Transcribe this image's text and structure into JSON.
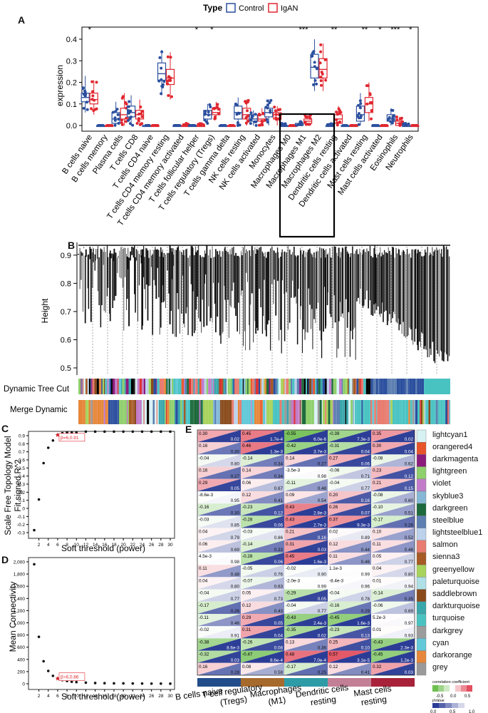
{
  "panels": {
    "a": "A",
    "b": "B",
    "c": "C",
    "d": "D",
    "e": "E"
  },
  "panelA": {
    "legend_title": "Type",
    "legend_control": "Control",
    "legend_igan": "IgAN",
    "ylabel": "expression",
    "y_ticks": [
      "0.0",
      "0.1",
      "0.2",
      "0.3",
      "0.4"
    ],
    "colors": {
      "control": "#2b4f9e",
      "igan": "#e0262f"
    },
    "cell_types": [
      {
        "name": "B cells naive",
        "sig": "*",
        "c": [
          0.06,
          0.11,
          0.13,
          0.15,
          0.23
        ],
        "i": [
          0.05,
          0.1,
          0.12,
          0.15,
          0.21
        ]
      },
      {
        "name": "B cells memory",
        "sig": "",
        "c": [
          0,
          0,
          0,
          0,
          0
        ],
        "i": [
          0,
          0,
          0,
          0,
          0
        ]
      },
      {
        "name": "Plasma cells",
        "sig": "",
        "c": [
          0,
          0.01,
          0.03,
          0.06,
          0.11
        ],
        "i": [
          0,
          0.03,
          0.05,
          0.08,
          0.15
        ]
      },
      {
        "name": "T cells CD8",
        "sig": "",
        "c": [
          0,
          0.04,
          0.06,
          0.09,
          0.14
        ],
        "i": [
          0,
          0.03,
          0.05,
          0.07,
          0.12
        ]
      },
      {
        "name": "T cells CD4 naive",
        "sig": "",
        "c": [
          0,
          0,
          0,
          0,
          0
        ],
        "i": [
          0,
          0,
          0,
          0,
          0
        ]
      },
      {
        "name": "T cells CD4 memory resting",
        "sig": "",
        "c": [
          0.14,
          0.21,
          0.24,
          0.29,
          0.35
        ],
        "i": [
          0.12,
          0.19,
          0.22,
          0.26,
          0.34
        ]
      },
      {
        "name": "T cells CD4 memory activated",
        "sig": "",
        "c": [
          0,
          0,
          0,
          0,
          0
        ],
        "i": [
          0,
          0,
          0,
          0,
          0.01
        ]
      },
      {
        "name": "T cells follicular helper",
        "sig": "*",
        "c": [
          0,
          0,
          0,
          0,
          0
        ],
        "i": [
          0,
          0,
          0,
          0,
          0.01
        ]
      },
      {
        "name": "T cells regulatory (Tregs)",
        "sig": "*",
        "c": [
          0.01,
          0.03,
          0.05,
          0.07,
          0.1
        ],
        "i": [
          0.03,
          0.05,
          0.06,
          0.08,
          0.11
        ]
      },
      {
        "name": "T cells gamma delta",
        "sig": "",
        "c": [
          0,
          0,
          0,
          0,
          0
        ],
        "i": [
          0,
          0,
          0,
          0,
          0
        ]
      },
      {
        "name": "NK cells resting",
        "sig": "",
        "c": [
          0,
          0.03,
          0.06,
          0.09,
          0.13
        ],
        "i": [
          0,
          0.03,
          0.05,
          0.08,
          0.12
        ]
      },
      {
        "name": "NK cells activated",
        "sig": "",
        "c": [
          0,
          0.02,
          0.03,
          0.05,
          0.07
        ],
        "i": [
          0,
          0.02,
          0.03,
          0.05,
          0.08
        ]
      },
      {
        "name": "Monocytes",
        "sig": "",
        "c": [
          0,
          0.04,
          0.06,
          0.08,
          0.12
        ],
        "i": [
          0,
          0.03,
          0.05,
          0.06,
          0.09
        ]
      },
      {
        "name": "Macrophages M0",
        "sig": "",
        "c": [
          0,
          0,
          0,
          0,
          0.01
        ],
        "i": [
          0,
          0,
          0,
          0,
          0
        ]
      },
      {
        "name": "Macrophages M1",
        "sig": "***",
        "c": [
          0,
          0,
          0,
          0.01,
          0.02
        ],
        "i": [
          0,
          0.01,
          0.02,
          0.03,
          0.05
        ]
      },
      {
        "name": "Macrophages M2",
        "sig": "",
        "c": [
          0.16,
          0.22,
          0.27,
          0.33,
          0.4
        ],
        "i": [
          0.16,
          0.22,
          0.26,
          0.31,
          0.38
        ]
      },
      {
        "name": "Dendritic cells resting",
        "sig": "**",
        "c": [
          0,
          0,
          0,
          0,
          0.01
        ],
        "i": [
          0,
          0.01,
          0.03,
          0.05,
          0.09
        ]
      },
      {
        "name": "Dendritic cells activated",
        "sig": "",
        "c": [
          0,
          0,
          0,
          0,
          0
        ],
        "i": [
          0,
          0,
          0,
          0,
          0
        ]
      },
      {
        "name": "Mast cells resting",
        "sig": "**",
        "c": [
          0,
          0.02,
          0.05,
          0.09,
          0.15
        ],
        "i": [
          0.02,
          0.06,
          0.1,
          0.13,
          0.2
        ]
      },
      {
        "name": "Mast cells activated",
        "sig": "*",
        "c": [
          0,
          0,
          0,
          0,
          0
        ],
        "i": [
          0,
          0,
          0,
          0,
          0
        ]
      },
      {
        "name": "Eosinophils",
        "sig": "***",
        "c": [
          0,
          0.02,
          0.03,
          0.05,
          0.08
        ],
        "i": [
          0,
          0,
          0.01,
          0.02,
          0.04
        ]
      },
      {
        "name": "Neutrophils",
        "sig": "*",
        "c": [
          0,
          0,
          0,
          0,
          0.01
        ],
        "i": [
          0,
          0,
          0,
          0,
          0
        ]
      }
    ]
  },
  "panelB": {
    "ylabel": "Height",
    "y_ticks": [
      "0.9",
      "0.8",
      "0.7",
      "0.6",
      "0.5"
    ],
    "row1": "Dynamic Tree Cut",
    "row2": "Merge Dynamic"
  },
  "chart_data": [
    {
      "type": "scatter",
      "title": "",
      "xlabel": "Soft threshold (power)",
      "ylabel": "Scale Free Topology Model Fit signed R^2",
      "x": [
        1,
        2,
        3,
        4,
        5,
        6,
        7,
        8,
        9,
        10,
        12,
        14,
        16,
        18,
        20,
        22,
        24,
        26,
        28,
        30
      ],
      "y": [
        -0.27,
        0.11,
        0.56,
        0.75,
        0.84,
        0.91,
        0.93,
        0.94,
        0.94,
        0.94,
        0.95,
        0.95,
        0.95,
        0.95,
        0.95,
        0.95,
        0.95,
        0.95,
        0.95,
        0.95
      ],
      "x_ticks": [
        "2",
        "4",
        "6",
        "8",
        "10",
        "12",
        "14",
        "16",
        "18",
        "20",
        "22",
        "24",
        "26",
        "28",
        "30"
      ],
      "y_ticks": [
        "0.9",
        "0.8",
        "0.7",
        "0.6",
        "0.5",
        "0.4",
        "0.3",
        "0.2",
        "0.1",
        "0",
        "-0.1",
        "-0.2",
        "-0.3"
      ],
      "annotation": "β=6,0.91",
      "ylim": [
        -0.3,
        1.0
      ]
    },
    {
      "type": "scatter",
      "title": "",
      "xlabel": "Soft threshold (power)",
      "ylabel": "Mean Connectivity",
      "x": [
        1,
        2,
        3,
        4,
        5,
        6,
        7,
        8,
        9,
        10,
        12,
        14,
        16,
        18,
        20,
        22,
        24,
        26,
        28,
        30
      ],
      "y": [
        1960,
        770,
        370,
        210,
        130,
        86,
        60,
        45,
        34,
        27,
        18,
        12,
        9,
        7,
        6,
        5,
        4,
        3,
        3,
        2
      ],
      "x_ticks": [
        "2",
        "4",
        "6",
        "8",
        "10",
        "12",
        "14",
        "16",
        "18",
        "20",
        "22",
        "24",
        "26",
        "28",
        "30"
      ],
      "y_ticks": [
        "2,000",
        "1,800",
        "1,600",
        "1,400",
        "1,200",
        "1,000",
        "800",
        "600",
        "400",
        "200",
        "0"
      ],
      "annotation": "β=6,0.86",
      "ylim": [
        0,
        2000
      ]
    }
  ],
  "panelE": {
    "columns": [
      "B cells naive",
      "T cell regulatory (Tregs)",
      "Macrophages (M1)",
      "Dendritic cells resting",
      "Mast cells resting"
    ],
    "modules": [
      "lightcyan1",
      "orangered4",
      "darkmagenta",
      "lightgreen",
      "violet",
      "skyblue3",
      "darkgreen",
      "steelblue",
      "lightsteelblue1",
      "salmon",
      "sienna3",
      "greenyellow",
      "paleturquoise",
      "saddlebrown",
      "darkturquoise",
      "turquoise",
      "darkgrey",
      "cyan",
      "darkorange",
      "grey"
    ],
    "module_colors": [
      "#d8f2f4",
      "#e8542a",
      "#8c1c7c",
      "#8fcf6c",
      "#c27bc9",
      "#86b7d4",
      "#1d6a3c",
      "#5d7fb1",
      "#bcd1eb",
      "#e87c70",
      "#a65a25",
      "#a8d35c",
      "#aee0e6",
      "#8a4b1c",
      "#3aa7ac",
      "#49c3c2",
      "#9c9c9c",
      "#63c9d9",
      "#e6873b",
      "#9a9a9a"
    ],
    "col_colors": [
      "#234d8a",
      "#a76a2d",
      "#2e9ca6",
      "#c37f95",
      "#a8233a"
    ],
    "corr": [
      [
        "0.30",
        "0.45",
        "-0.55",
        "-0.39",
        "0.35"
      ],
      [
        "0.16",
        "0.46",
        "-0.42",
        "-0.31",
        "0.30"
      ],
      [
        "-0.04",
        "-0.14",
        "0.14",
        "0.27",
        "-0.08"
      ],
      [
        "0.16",
        "0.14",
        "-3.5e-3",
        "-0.06",
        "0.23"
      ],
      [
        "0.29",
        "0.06",
        "-0.11",
        "-0.04",
        "0.21"
      ],
      [
        "-8.6e-3",
        "0.12",
        "0.09",
        "0.20",
        "-0.08"
      ],
      [
        "-0.16",
        "-0.23",
        "0.43",
        "0.26",
        "-0.10"
      ],
      [
        "-0.03",
        "-0.28",
        "0.43",
        "0.37",
        "-0.17"
      ],
      [
        "0.04",
        "-0.03",
        "0.21",
        "0.02",
        "0.10"
      ],
      [
        "0.06",
        "-0.14",
        "0.31",
        "0.12",
        "0.11"
      ],
      [
        "4.5e-3",
        "-0.28",
        "0.45",
        "0.11",
        "0.05"
      ],
      [
        "0.11",
        "-0.05",
        "-0.02",
        "1.1e-3",
        "0.04"
      ],
      [
        "0.04",
        "-0.07",
        "-2.0e-3",
        "-8.4e-3",
        "0.01"
      ],
      [
        "-0.04",
        "0.05",
        "-0.29",
        "-0.04",
        "-0.14"
      ],
      [
        "-0.17",
        "0.12",
        "-0.04",
        "-0.16",
        "-0.06"
      ],
      [
        "-0.11",
        "0.29",
        "-0.43",
        "-0.45",
        "5.2e-3"
      ],
      [
        "-0.02",
        "0.31",
        "-0.35",
        "-0.23",
        "0.01"
      ],
      [
        "-0.38",
        "-0.26",
        "0.13",
        "0.25",
        "-0.43"
      ],
      [
        "-0.32",
        "-0.47",
        "0.48",
        "0.57",
        "-0.45"
      ],
      [
        "0.16",
        "0.08",
        "-0.17",
        "0.12",
        "0.32"
      ]
    ],
    "pval": [
      [
        "0.02",
        "1.7e-4",
        "6.0e-6",
        "7.3e-3",
        "0.02"
      ],
      [
        "0.30",
        "1.3e-3",
        "3.7e-3",
        "0.04",
        "0.04"
      ],
      [
        "0.80",
        "0.34",
        "0.27",
        "0.06",
        "0.62"
      ],
      [
        "0.27",
        "0.34",
        "0.98",
        "0.71",
        "0.12"
      ],
      [
        "0.05",
        "0.67",
        "0.48",
        "0.77",
        "0.15"
      ],
      [
        "0.95",
        "0.41",
        "0.54",
        "0.16",
        "0.60"
      ],
      [
        "0.30",
        "0.12",
        "2.8e-3",
        "0.07",
        "0.51"
      ],
      [
        "0.85",
        "0.06",
        "2.7e-3",
        "9.3e-3",
        "0.26"
      ],
      [
        "0.79",
        "0.86",
        "0.16",
        "0.89",
        "0.52"
      ],
      [
        "0.69",
        "0.33",
        "0.03",
        "0.44",
        "0.46"
      ],
      [
        "0.98",
        "0.06",
        "1.6e-3",
        "0.46",
        "0.77"
      ],
      [
        "0.48",
        "0.76",
        "0.90",
        "0.99",
        "0.80"
      ],
      [
        "0.80",
        "0.63",
        "0.99",
        "0.96",
        "0.94"
      ],
      [
        "0.77",
        "0.73",
        "0.05",
        "0.78",
        "0.35"
      ],
      [
        "0.26",
        "0.43",
        "0.77",
        "0.29",
        "0.69"
      ],
      [
        "0.46",
        "0.05",
        "2.4e-3",
        "1.6e-3",
        "0.97"
      ],
      [
        "0.91",
        "0.04",
        "0.02",
        "0.13",
        "0.93"
      ],
      [
        "8.6e-3",
        "0.08",
        "0.36",
        "0.10",
        "2.3e-3"
      ],
      [
        "0.03",
        "8.6e-4",
        "7.0e-4",
        "3.1e-5",
        "1.2e-3"
      ],
      [
        "0.28",
        "0.58",
        "0.25",
        "0.41",
        "0.03"
      ]
    ],
    "legend_corr_title": "correlation coefficient",
    "legend_corr_ticks": [
      "-0.5",
      "0.0",
      "0.5"
    ],
    "legend_p_title": "pValue",
    "legend_p_ticks": [
      "0.0",
      "0.5",
      "1.0"
    ]
  }
}
